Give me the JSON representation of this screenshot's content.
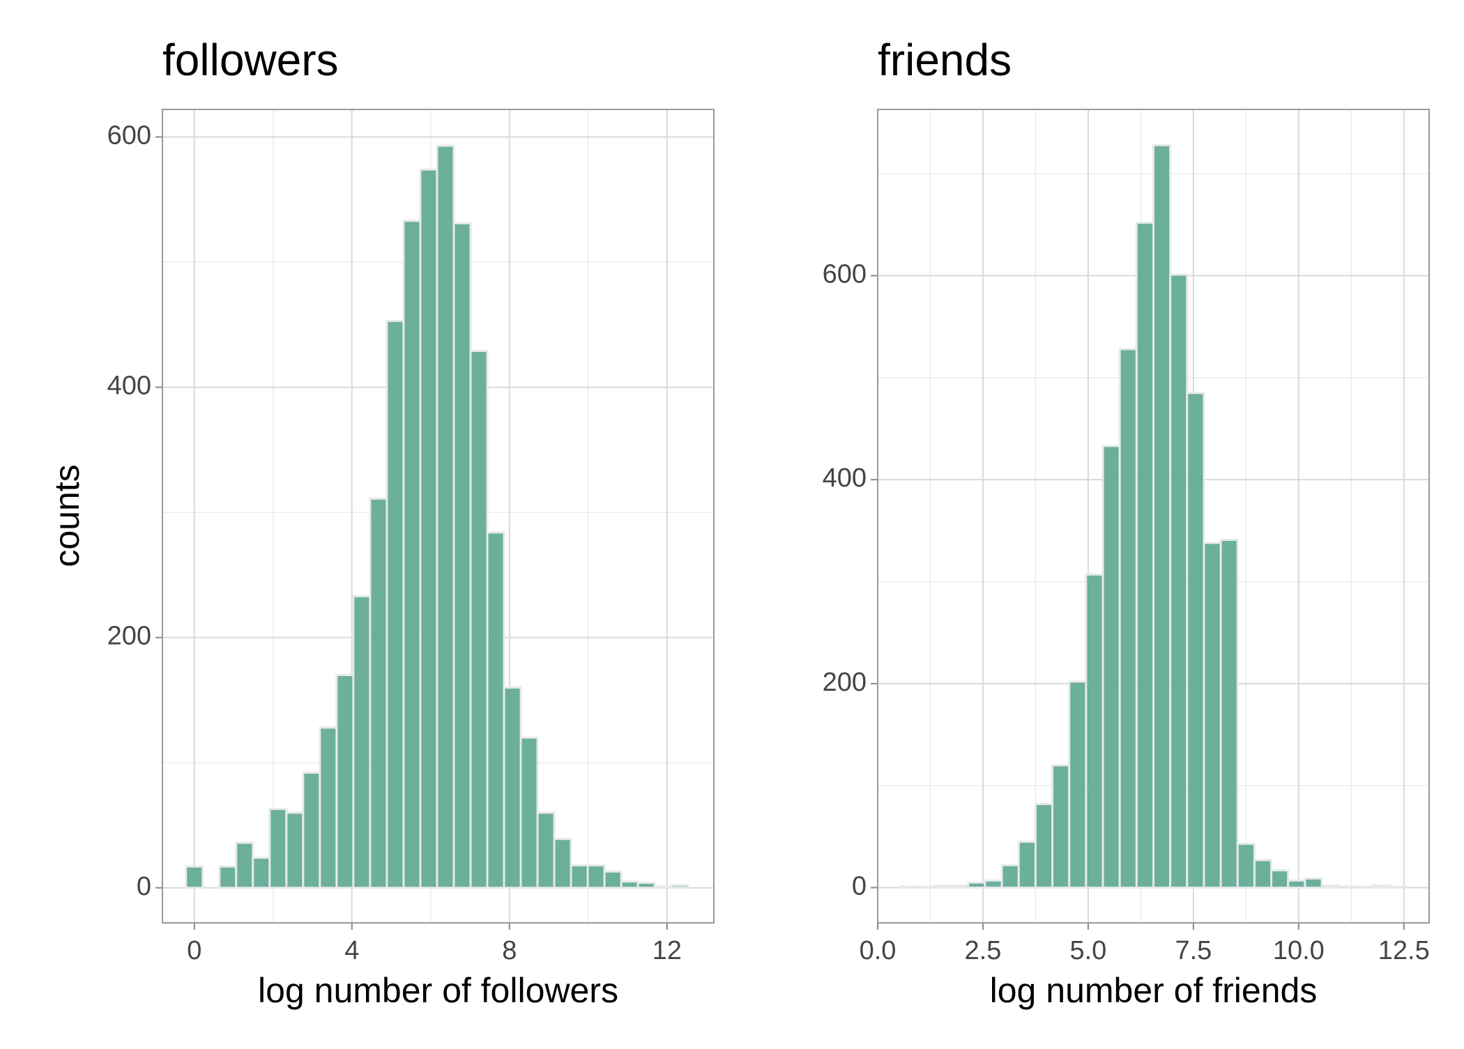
{
  "chart_data": [
    {
      "type": "histogram",
      "title": "followers",
      "xlabel": "log number of followers",
      "ylabel": "counts",
      "bins": [
        -0.2125,
        0.2125,
        0.6375,
        1.0625,
        1.4875,
        1.9125,
        2.3375,
        2.7625,
        3.1875,
        3.6125,
        4.0375,
        4.4625,
        4.8875,
        5.3125,
        5.7375,
        6.1625,
        6.5875,
        7.0125,
        7.4375,
        7.8625,
        8.2875,
        8.7125,
        9.1375,
        9.5625,
        9.9875,
        10.4125,
        10.8375,
        11.2625,
        11.6875,
        12.1125,
        12.5375
      ],
      "counts": [
        17,
        0,
        17,
        36,
        24,
        63,
        60,
        92,
        128,
        170,
        233,
        311,
        453,
        533,
        574,
        593,
        531,
        429,
        284,
        160,
        120,
        60,
        39,
        18,
        18,
        13,
        5,
        4,
        1,
        2
      ],
      "color": "#5fa891",
      "edgecolor": "#e6e9ec",
      "xlim": [
        -0.81,
        13.19
      ],
      "ylim": [
        -28,
        622
      ],
      "xticks": [
        0,
        4,
        8,
        12
      ],
      "yticks": [
        0,
        200,
        400,
        600
      ],
      "xminor": [
        2,
        6,
        10
      ],
      "yminor": [
        100,
        300,
        500
      ],
      "grid": true
    },
    {
      "type": "histogram",
      "title": "friends",
      "xlabel": "log number of friends",
      "bins": [
        0.55,
        0.95,
        1.35,
        1.75,
        2.15,
        2.55,
        2.95,
        3.35,
        3.75,
        4.15,
        4.55,
        4.95,
        5.35,
        5.75,
        6.15,
        6.55,
        6.95,
        7.35,
        7.75,
        8.15,
        8.55,
        8.95,
        9.35,
        9.75,
        10.15,
        10.55,
        10.95,
        11.35,
        11.75,
        12.15,
        12.55
      ],
      "counts": [
        1,
        1,
        2,
        2,
        5,
        7,
        22,
        45,
        82,
        120,
        202,
        307,
        433,
        528,
        652,
        728,
        601,
        485,
        338,
        341,
        43,
        27,
        17,
        7,
        9,
        2,
        1,
        1,
        2,
        1
      ],
      "color": "#5fa891",
      "edgecolor": "#e6e9ec",
      "xlim": [
        0,
        13.1
      ],
      "ylim": [
        -34.5,
        763
      ],
      "xticks": [
        {
          "value": 0,
          "label": "0.0"
        },
        {
          "value": 2.5,
          "label": "2.5"
        },
        {
          "value": 5,
          "label": "5.0"
        },
        {
          "value": 7.5,
          "label": "7.5"
        },
        {
          "value": 10,
          "label": "10.0"
        },
        {
          "value": 12.5,
          "label": "12.5"
        }
      ],
      "yticks": [
        0,
        200,
        400,
        600
      ],
      "xminor": [
        1.25,
        3.75,
        6.25,
        8.75,
        11.25
      ],
      "yminor": [
        100,
        300,
        500,
        700
      ],
      "grid": true
    }
  ]
}
